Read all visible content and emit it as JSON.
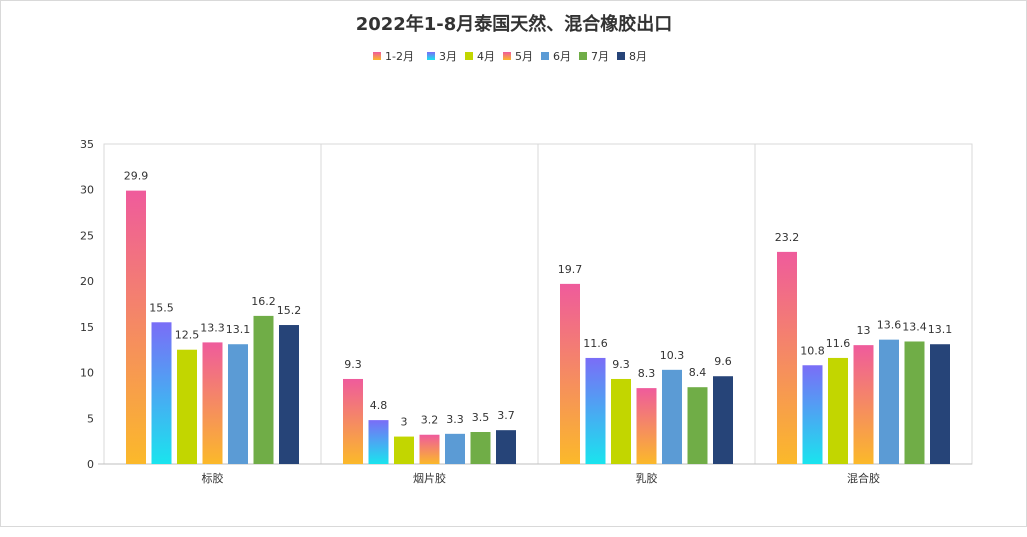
{
  "chart_data": {
    "type": "bar",
    "title": "2022年1-8月泰国天然、混合橡胶出口",
    "categories": [
      "标胶",
      "烟片胶",
      "乳胶",
      "混合胶"
    ],
    "series": [
      {
        "name": "1-2月",
        "values": [
          29.9,
          9.3,
          19.7,
          23.2
        ],
        "colors": [
          "#ef5b9c",
          "#fbb92a"
        ]
      },
      {
        "name": "3月",
        "values": [
          15.5,
          4.8,
          11.6,
          10.8
        ],
        "colors": [
          "#7a6df7",
          "#1ae4ee"
        ]
      },
      {
        "name": "4月",
        "values": [
          12.5,
          3,
          9.3,
          11.6
        ],
        "colors": [
          "#c2d600",
          "#c2d600"
        ]
      },
      {
        "name": "5月",
        "values": [
          13.3,
          3.2,
          8.3,
          13
        ],
        "colors": [
          "#ef5b9c",
          "#fbb92a"
        ]
      },
      {
        "name": "6月",
        "values": [
          13.1,
          3.3,
          10.3,
          13.6
        ],
        "colors": [
          "#5b9bd5",
          "#5b9bd5"
        ]
      },
      {
        "name": "7月",
        "values": [
          16.2,
          3.5,
          8.4,
          13.4
        ],
        "colors": [
          "#70ad47",
          "#70ad47"
        ]
      },
      {
        "name": "8月",
        "values": [
          15.2,
          3.7,
          9.6,
          13.1
        ],
        "colors": [
          "#264478",
          "#264478"
        ]
      }
    ],
    "ylim": [
      0,
      35
    ],
    "yticks": [
      0,
      5,
      10,
      15,
      20,
      25,
      30,
      35
    ],
    "legend_placement": "top-center",
    "grid": "vertical category separators",
    "data_labels": true
  }
}
